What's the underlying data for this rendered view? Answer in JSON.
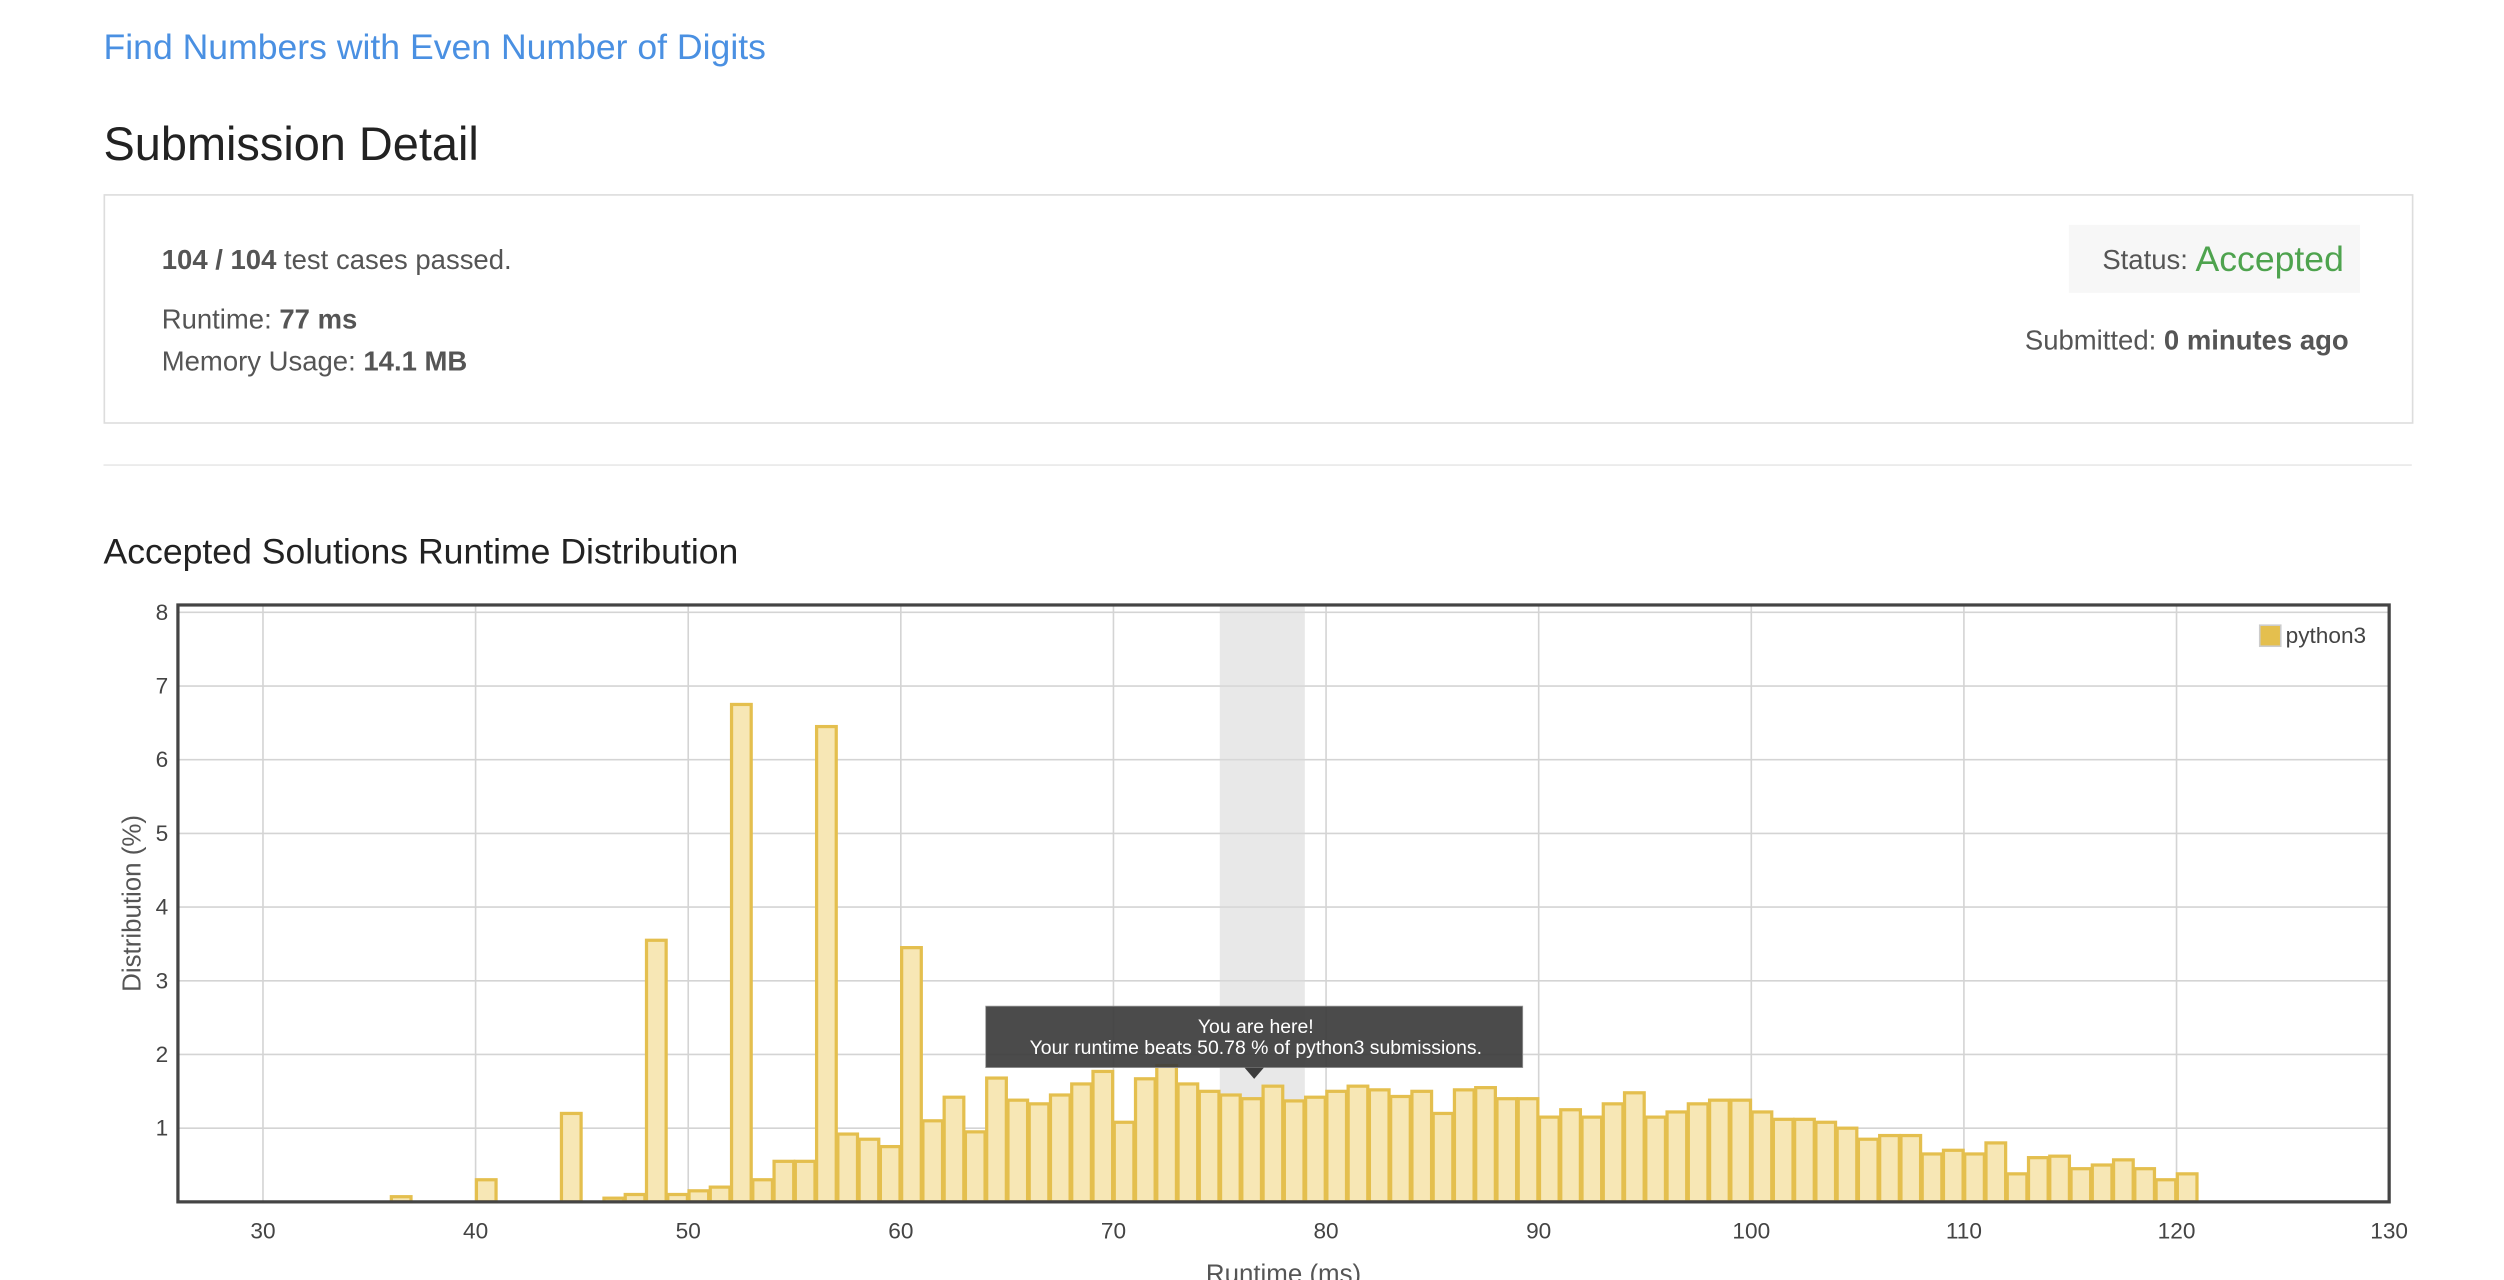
{
  "page": {
    "problem_title": "Find Numbers with Even Number of Digits",
    "heading": "Submission Detail",
    "cases": "104 / 104",
    "cases_text": " test cases passed.",
    "runtime_label": "Runtime: ",
    "runtime_value": "77 ms",
    "memory_label": "Memory Usage: ",
    "memory_value": "14.1 MB",
    "status_label": "Status: ",
    "status_value": "Accepted",
    "submitted_label": "Submitted: ",
    "submitted_value": "0 minutes ago"
  },
  "chart_data": {
    "type": "histogram",
    "title": "Accepted Solutions Runtime Distribution",
    "x_label": "Runtime (ms)",
    "y_label": "Distribution (%)",
    "bins": [
      36,
      37,
      38,
      39,
      40,
      41,
      42,
      43,
      44,
      45,
      46,
      47,
      48,
      49,
      50,
      51,
      52,
      53,
      54,
      55,
      56,
      57,
      58,
      59,
      60,
      61,
      62,
      63,
      64,
      65,
      66,
      67,
      68,
      69,
      70,
      71,
      72,
      73,
      74,
      75,
      76,
      77,
      78,
      79,
      80,
      81,
      82,
      83,
      84,
      85,
      86,
      87,
      88,
      89,
      90,
      91,
      92,
      93,
      94,
      95,
      96,
      97,
      98,
      99,
      100,
      101,
      102,
      103,
      104,
      105,
      106,
      107,
      108,
      109,
      110,
      111,
      112,
      113,
      114,
      115,
      116,
      117,
      118,
      119,
      120,
      121
    ],
    "series": [
      {
        "name": "python3",
        "color": "#e4bf4e",
        "fill": "#f7e7b5",
        "values": [
          0.07,
          0,
          0,
          0,
          0.3,
          0,
          0,
          0,
          1.2,
          0,
          0.05,
          0.1,
          3.55,
          0.1,
          0.15,
          0.2,
          6.75,
          0.3,
          0.55,
          0.55,
          6.45,
          0.92,
          0.85,
          0.75,
          3.45,
          1.1,
          1.42,
          0.95,
          1.68,
          1.38,
          1.33,
          1.45,
          1.6,
          1.77,
          1.08,
          1.67,
          1.85,
          1.6,
          1.5,
          1.45,
          1.4,
          1.57,
          1.37,
          1.42,
          1.5,
          1.57,
          1.52,
          1.43,
          1.5,
          1.2,
          1.52,
          1.55,
          1.4,
          1.4,
          1.15,
          1.25,
          1.15,
          1.33,
          1.48,
          1.15,
          1.22,
          1.33,
          1.38,
          1.38,
          1.22,
          1.12,
          1.12,
          1.08,
          1.0,
          0.85,
          0.9,
          0.9,
          0.65,
          0.7,
          0.65,
          0.8,
          0.38,
          0.6,
          0.62,
          0.45,
          0.5,
          0.57,
          0.45,
          0.3,
          0.38
        ]
      }
    ],
    "highlight": [
      75,
      79
    ],
    "tooltip": [
      "You are here!",
      "Your runtime beats 50.78 % of python3 submissions."
    ],
    "xlim": [
      26,
      130
    ],
    "xticks": [
      30,
      40,
      50,
      60,
      70,
      80,
      90,
      100,
      110,
      120,
      130
    ],
    "ylim": [
      0,
      8.1
    ],
    "yticks": [
      1,
      2,
      3,
      4,
      5,
      6,
      7,
      8
    ],
    "grid": true,
    "legend": "top-right"
  }
}
